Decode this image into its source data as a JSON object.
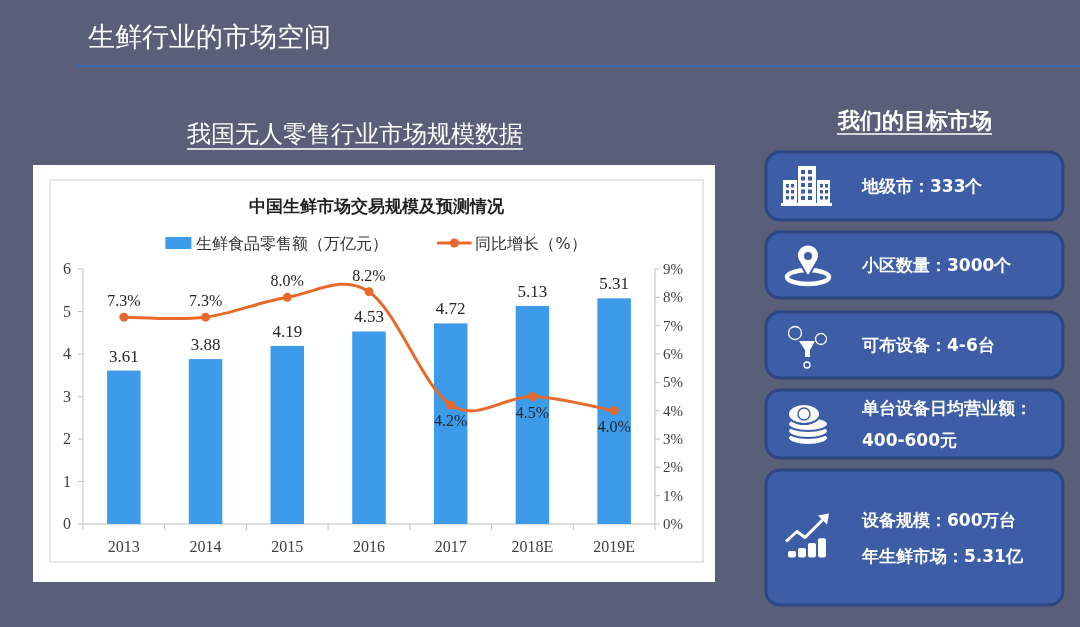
{
  "chart_data": [
    {
      "type": "bar",
      "title": "中国生鲜市场交易规模及预测情况",
      "annotations": [
        "生鲜行业的市场空间",
        "我国无人零售行业市场规模数据"
      ],
      "categories": [
        "2013",
        "2014",
        "2015",
        "2016",
        "2017",
        "2018E",
        "2019E"
      ],
      "series": [
        {
          "name": "生鲜食品零售额（万亿元）",
          "color": "#3d9be9",
          "values": [
            3.61,
            3.88,
            4.19,
            4.53,
            4.72,
            5.13,
            5.31
          ],
          "value_labels": [
            "3.61",
            "3.88",
            "4.19",
            "4.53",
            "4.72",
            "5.13",
            "5.31"
          ]
        },
        {
          "name": "同比增长（%）",
          "type": "line",
          "axis": "y2",
          "color": "#e8692c",
          "marker": "circle",
          "values": [
            7.3,
            7.3,
            8.0,
            8.2,
            4.2,
            4.5,
            4.0
          ],
          "value_labels": [
            "7.3%",
            "7.3%",
            "8.0%",
            "8.2%",
            "4.2%",
            "4.5%",
            "4.0%"
          ]
        }
      ],
      "ylim": [
        0,
        6
      ],
      "yticks": [
        0,
        1,
        2,
        3,
        4,
        5,
        6
      ],
      "y2lim": [
        0,
        9
      ],
      "y2ticks": [
        {
          "value": 0,
          "label": "0%"
        },
        {
          "value": 1,
          "label": "1%"
        },
        {
          "value": 2,
          "label": "2%"
        },
        {
          "value": 3,
          "label": "3%"
        },
        {
          "value": 4,
          "label": "4%"
        },
        {
          "value": 5,
          "label": "5%"
        },
        {
          "value": 6,
          "label": "6%"
        },
        {
          "value": 7,
          "label": "7%"
        },
        {
          "value": 8,
          "label": "8%"
        },
        {
          "value": 9,
          "label": "9%"
        }
      ],
      "legend": "top"
    },
    {
      "type": "other",
      "title": "我们的目标市场",
      "annotations": [
        "地级市：333个",
        "小区数量：3000个",
        "可布设备：4-6台",
        "单台设备日均营业额：400-600元",
        "设备规模：600万台",
        "年生鲜市场：5.31亿"
      ]
    }
  ]
}
